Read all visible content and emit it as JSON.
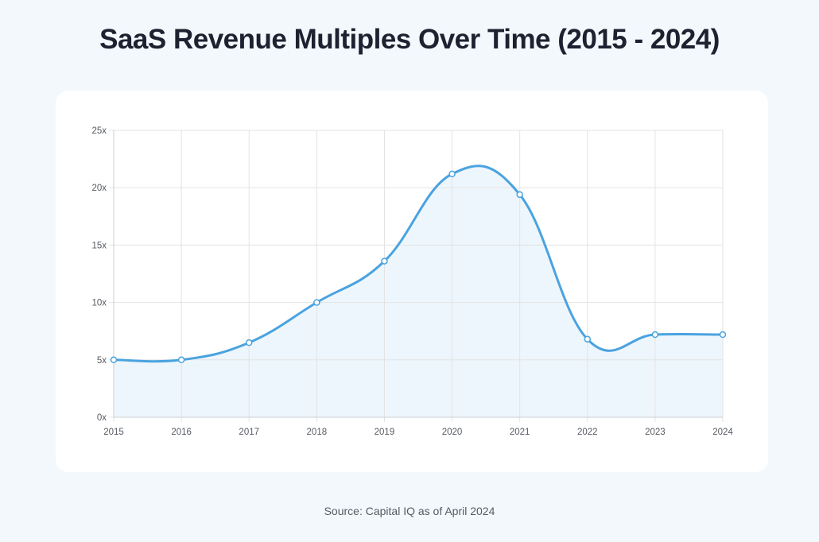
{
  "title": "SaaS Revenue Multiples Over Time (2015 - 2024)",
  "source": "Source: Capital IQ as of April 2024",
  "colors": {
    "line": "#4aa3df",
    "fill": "#eef6fd",
    "grid": "#e3e3e3",
    "background": "#f3f8fc",
    "card": "#ffffff"
  },
  "chart_data": {
    "type": "line",
    "title": "SaaS Revenue Multiples Over Time (2015 - 2024)",
    "xlabel": "",
    "ylabel": "",
    "categories": [
      "2015",
      "2016",
      "2017",
      "2018",
      "2019",
      "2020",
      "2021",
      "2022",
      "2023",
      "2024"
    ],
    "series": [
      {
        "values": [
          5.0,
          5.0,
          6.5,
          10.0,
          13.6,
          21.2,
          19.4,
          6.8,
          7.2,
          7.2
        ]
      }
    ],
    "y_ticks": [
      0,
      5,
      10,
      15,
      20,
      25
    ],
    "y_tick_labels": [
      "0x",
      "5x",
      "10x",
      "15x",
      "20x",
      "25x"
    ],
    "ylim": [
      0,
      25
    ],
    "smooth": true,
    "area_fill": true,
    "grid": true,
    "legend": "none"
  }
}
